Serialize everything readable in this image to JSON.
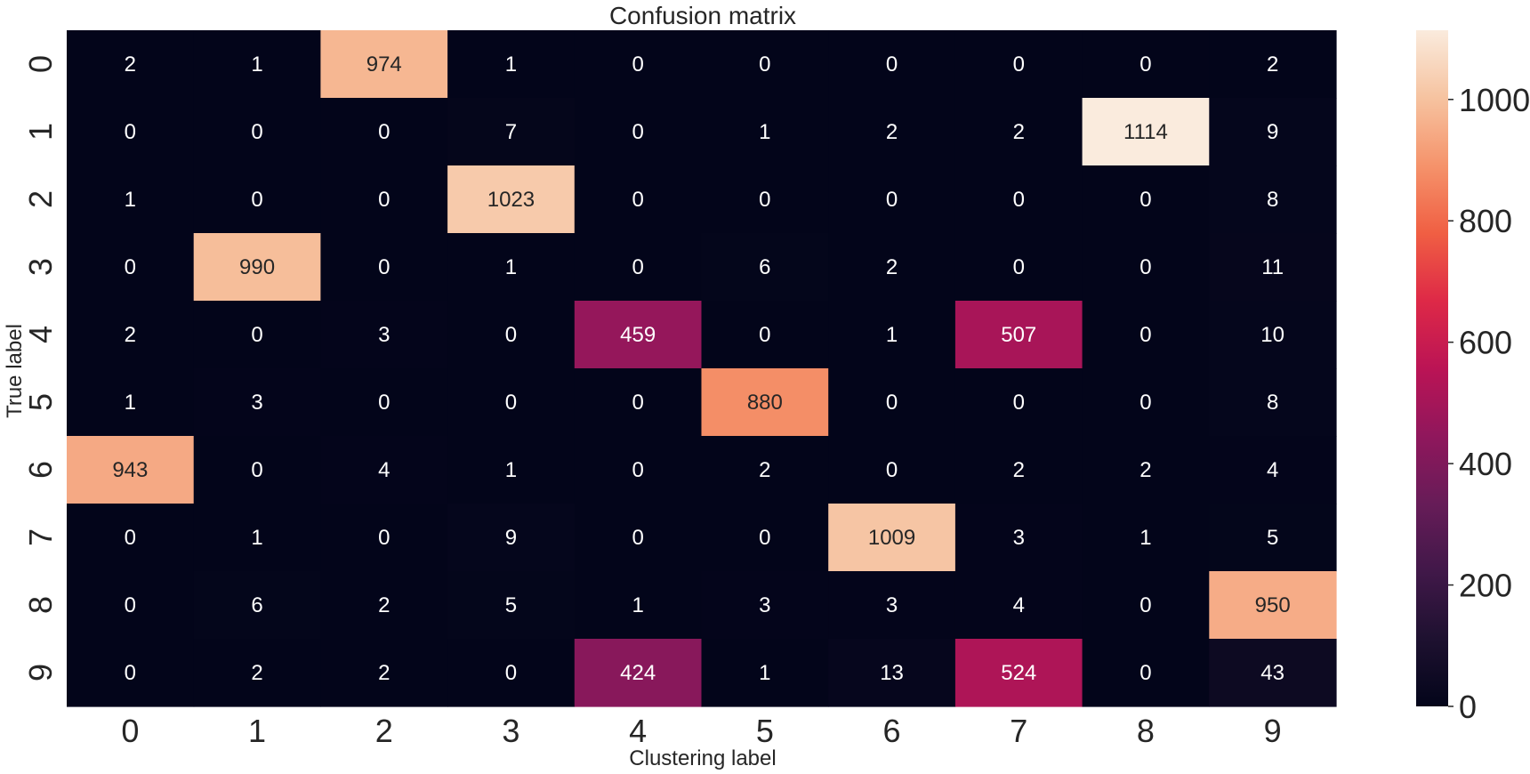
{
  "chart_data": {
    "type": "heatmap",
    "title": "Confusion matrix",
    "xlabel": "Clustering label",
    "ylabel": "True label",
    "x_categories": [
      "0",
      "1",
      "2",
      "3",
      "4",
      "5",
      "6",
      "7",
      "8",
      "9"
    ],
    "y_categories": [
      "0",
      "1",
      "2",
      "3",
      "4",
      "5",
      "6",
      "7",
      "8",
      "9"
    ],
    "values": [
      [
        2,
        1,
        974,
        1,
        0,
        0,
        0,
        0,
        0,
        2
      ],
      [
        0,
        0,
        0,
        7,
        0,
        1,
        2,
        2,
        1114,
        9
      ],
      [
        1,
        0,
        0,
        1023,
        0,
        0,
        0,
        0,
        0,
        8
      ],
      [
        0,
        990,
        0,
        1,
        0,
        6,
        2,
        0,
        0,
        11
      ],
      [
        2,
        0,
        3,
        0,
        459,
        0,
        1,
        507,
        0,
        10
      ],
      [
        1,
        3,
        0,
        0,
        0,
        880,
        0,
        0,
        0,
        8
      ],
      [
        943,
        0,
        4,
        1,
        0,
        2,
        0,
        2,
        2,
        4
      ],
      [
        0,
        1,
        0,
        9,
        0,
        0,
        1009,
        3,
        1,
        5
      ],
      [
        0,
        6,
        2,
        5,
        1,
        3,
        3,
        4,
        0,
        950
      ],
      [
        0,
        2,
        2,
        0,
        424,
        1,
        13,
        524,
        0,
        43
      ]
    ],
    "colorbar": {
      "ticks": [
        "0",
        "200",
        "400",
        "600",
        "800",
        "1000"
      ],
      "vmin": 0,
      "vmax": 1114,
      "colormap": "rocket"
    },
    "grid": false
  }
}
